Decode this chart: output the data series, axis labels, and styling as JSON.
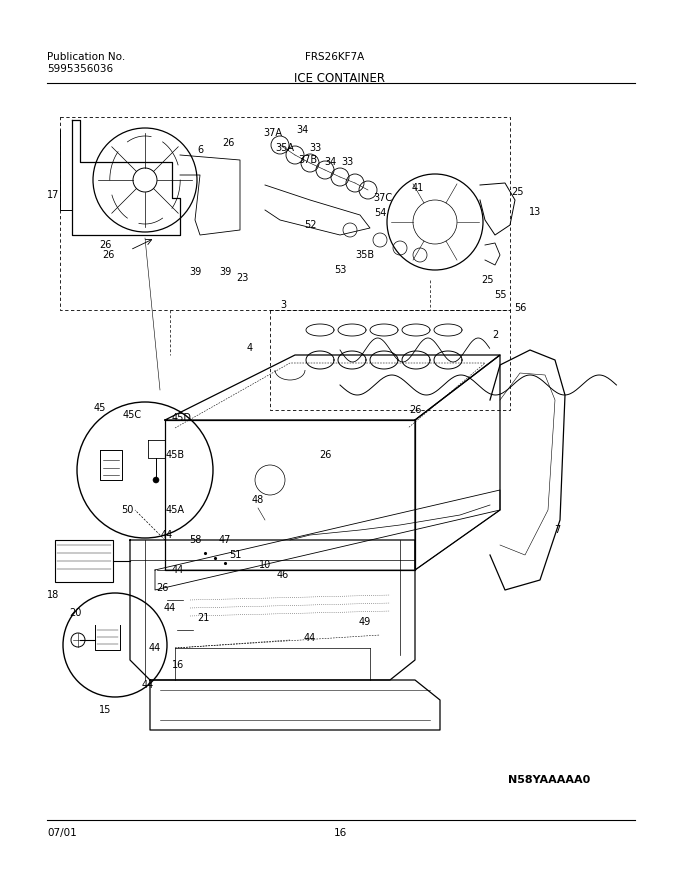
{
  "pub_label": "Publication No.",
  "pub_number": "5995356036",
  "model": "FRS26KF7A",
  "section": "ICE CONTAINER",
  "diagram_code": "N58YAAAAA0",
  "page_num": "16",
  "date": "07/01",
  "bg_color": "#ffffff",
  "note_text": "N58YAAAAA0"
}
